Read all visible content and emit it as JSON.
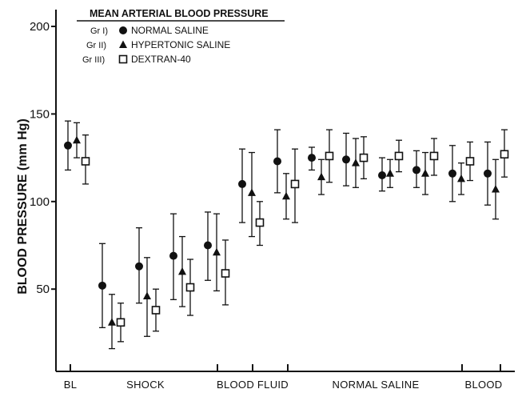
{
  "chart_data": {
    "type": "scatter",
    "title": "MEAN ARTERIAL BLOOD PRESSURE",
    "ylabel": "BLOOD PRESSURE (mm Hg)",
    "xlabel": "",
    "ylim": [
      0,
      210
    ],
    "yticks": [
      50,
      100,
      150,
      200
    ],
    "grid": false,
    "legend_position": "top-left",
    "phase_labels": [
      "BL",
      "SHOCK",
      "BLOOD FLUID",
      "NORMAL SALINE",
      "BLOOD"
    ],
    "series": [
      {
        "name": "NORMAL SALINE",
        "group": "Gr I)",
        "marker": "circle",
        "points": [
          {
            "y": 132,
            "low": 118,
            "high": 146
          },
          {
            "y": 52,
            "low": 28,
            "high": 76
          },
          {
            "y": 63,
            "low": 42,
            "high": 85
          },
          {
            "y": 69,
            "low": 44,
            "high": 93
          },
          {
            "y": 75,
            "low": 55,
            "high": 94
          },
          {
            "y": 110,
            "low": 88,
            "high": 130
          },
          {
            "y": 123,
            "low": 105,
            "high": 141
          },
          {
            "y": 125,
            "low": 118,
            "high": 131
          },
          {
            "y": 124,
            "low": 109,
            "high": 139
          },
          {
            "y": 115,
            "low": 106,
            "high": 125
          },
          {
            "y": 118,
            "low": 108,
            "high": 129
          },
          {
            "y": 116,
            "low": 100,
            "high": 132
          },
          {
            "y": 116,
            "low": 98,
            "high": 134
          }
        ]
      },
      {
        "name": "HYPERTONIC SALINE",
        "group": "Gr II)",
        "marker": "triangle",
        "points": [
          {
            "y": 135,
            "low": 125,
            "high": 145
          },
          {
            "y": 31,
            "low": 16,
            "high": 47
          },
          {
            "y": 46,
            "low": 23,
            "high": 68
          },
          {
            "y": 60,
            "low": 40,
            "high": 80
          },
          {
            "y": 71,
            "low": 49,
            "high": 93
          },
          {
            "y": 105,
            "low": 80,
            "high": 128
          },
          {
            "y": 103,
            "low": 90,
            "high": 116
          },
          {
            "y": 114,
            "low": 104,
            "high": 124
          },
          {
            "y": 122,
            "low": 108,
            "high": 136
          },
          {
            "y": 116,
            "low": 108,
            "high": 124
          },
          {
            "y": 116,
            "low": 104,
            "high": 128
          },
          {
            "y": 113,
            "low": 104,
            "high": 122
          },
          {
            "y": 107,
            "low": 90,
            "high": 124
          }
        ]
      },
      {
        "name": "DEXTRAN-40",
        "group": "Gr III)",
        "marker": "square-open",
        "points": [
          {
            "y": 123,
            "low": 110,
            "high": 138
          },
          {
            "y": 31,
            "low": 20,
            "high": 42
          },
          {
            "y": 38,
            "low": 26,
            "high": 50
          },
          {
            "y": 51,
            "low": 35,
            "high": 67
          },
          {
            "y": 59,
            "low": 41,
            "high": 78
          },
          {
            "y": 88,
            "low": 75,
            "high": 100
          },
          {
            "y": 110,
            "low": 88,
            "high": 130
          },
          {
            "y": 126,
            "low": 111,
            "high": 141
          },
          {
            "y": 125,
            "low": 113,
            "high": 137
          },
          {
            "y": 126,
            "low": 117,
            "high": 135
          },
          {
            "y": 126,
            "low": 115,
            "high": 136
          },
          {
            "y": 123,
            "low": 112,
            "high": 134
          },
          {
            "y": 127,
            "low": 114,
            "high": 141
          }
        ]
      }
    ]
  }
}
